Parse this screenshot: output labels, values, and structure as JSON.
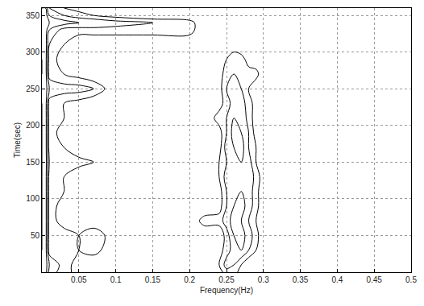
{
  "chart_data": {
    "type": "contour",
    "x_label": "Frequency(Hz)",
    "y_label": "Time(sec)",
    "xlim": [
      0,
      0.5
    ],
    "xticks": [
      0.05,
      0.1,
      0.15,
      0.2,
      0.25,
      0.3,
      0.35,
      0.4,
      0.45,
      0.5
    ],
    "ylim": [
      0,
      360
    ],
    "yticks": [
      50,
      100,
      150,
      200,
      250,
      300,
      350
    ],
    "grid": true,
    "color": "#000000",
    "contour_levels": {
      "start": 0.2,
      "end": 0.8,
      "size": 0.2
    },
    "x": [
      0,
      0.005,
      0.01,
      0.03,
      0.05,
      0.07,
      0.1,
      0.15,
      0.2,
      0.22,
      0.24,
      0.25,
      0.26,
      0.27,
      0.28,
      0.29,
      0.3,
      0.32,
      0.35,
      0.4,
      0.45,
      0.5
    ],
    "y": [
      0,
      10,
      30,
      50,
      70,
      90,
      110,
      130,
      150,
      170,
      190,
      210,
      230,
      250,
      270,
      290,
      310,
      330,
      340,
      350,
      360
    ],
    "cells": [
      [
        0.9,
        0.9,
        0.5,
        0.3,
        0.1,
        0,
        0,
        0,
        0,
        0,
        0.1,
        0.3,
        0.3,
        0.1,
        0,
        0,
        0,
        0,
        0,
        0,
        0,
        0
      ],
      [
        0.9,
        0.9,
        0.6,
        0.3,
        0.1,
        0,
        0,
        0,
        0,
        0,
        0.2,
        0.5,
        0.4,
        0.2,
        0,
        0,
        0,
        0,
        0,
        0,
        0,
        0
      ],
      [
        0.8,
        0.9,
        0.3,
        0.3,
        0.2,
        0.3,
        0,
        0,
        0,
        0,
        0.1,
        0.3,
        0.5,
        0.6,
        0.4,
        0.2,
        0,
        0,
        0,
        0,
        0,
        0
      ],
      [
        0.8,
        0.9,
        0.3,
        0.3,
        0.2,
        0.4,
        0,
        0,
        0,
        0,
        0,
        0.3,
        0.6,
        0.7,
        0.5,
        0.3,
        0,
        0,
        0,
        0,
        0,
        0
      ],
      [
        0.8,
        0.9,
        0.3,
        0.1,
        0,
        0,
        0,
        0,
        0,
        0.3,
        0.3,
        0.5,
        0.7,
        0.6,
        0.4,
        0.2,
        0,
        0,
        0,
        0,
        0,
        0
      ],
      [
        0.8,
        0.9,
        0.3,
        0.1,
        0,
        0,
        0,
        0,
        0,
        0,
        0.1,
        0.4,
        0.6,
        0.7,
        0.5,
        0.3,
        0,
        0,
        0,
        0,
        0,
        0
      ],
      [
        0.8,
        0.9,
        0.3,
        0.2,
        0,
        0,
        0,
        0,
        0,
        0,
        0.1,
        0.4,
        0.6,
        0.6,
        0.5,
        0.3,
        0,
        0,
        0,
        0,
        0,
        0
      ],
      [
        0.8,
        0.9,
        0.3,
        0.2,
        0,
        0,
        0,
        0,
        0,
        0,
        0.2,
        0.5,
        0.6,
        0.5,
        0.6,
        0.3,
        0.1,
        0,
        0,
        0,
        0,
        0
      ],
      [
        0.8,
        0.9,
        0.4,
        0.4,
        0.3,
        0.2,
        0,
        0,
        0,
        0,
        0.2,
        0.4,
        0.6,
        0.6,
        0.5,
        0.2,
        0,
        0,
        0,
        0,
        0,
        0
      ],
      [
        0.8,
        0.9,
        0.3,
        0.2,
        0,
        0.1,
        0,
        0,
        0,
        0,
        0.1,
        0.5,
        0.6,
        0.7,
        0.4,
        0.2,
        0,
        0,
        0,
        0,
        0,
        0
      ],
      [
        0.8,
        0.9,
        0.3,
        0.1,
        0,
        0,
        0,
        0,
        0,
        0,
        0.1,
        0.4,
        0.7,
        0.6,
        0.4,
        0.1,
        0,
        0,
        0,
        0,
        0,
        0
      ],
      [
        0.8,
        0.9,
        0.3,
        0.2,
        0,
        0,
        0,
        0,
        0,
        0,
        0.3,
        0.4,
        0.6,
        0.6,
        0.3,
        0.1,
        0,
        0,
        0,
        0,
        0,
        0
      ],
      [
        0.8,
        0.9,
        0.3,
        0.2,
        0.1,
        0,
        0,
        0,
        0,
        0,
        0.1,
        0.3,
        0.5,
        0.5,
        0.3,
        0.1,
        0,
        0,
        0,
        0,
        0,
        0
      ],
      [
        0.9,
        0.9,
        0.6,
        0.5,
        0.5,
        0.4,
        0,
        0,
        0,
        0,
        0.1,
        0.4,
        0.5,
        0.4,
        0.2,
        0,
        0,
        0,
        0,
        0,
        0,
        0
      ],
      [
        0.8,
        0.9,
        0.3,
        0.2,
        0.1,
        0,
        0,
        0,
        0,
        0,
        0.1,
        0.3,
        0.4,
        0.3,
        0.3,
        0.3,
        0,
        0,
        0,
        0,
        0,
        0
      ],
      [
        0.8,
        0.9,
        0.3,
        0.1,
        0,
        0,
        0,
        0,
        0,
        0,
        0,
        0.2,
        0.3,
        0.3,
        0.1,
        0,
        0,
        0,
        0,
        0,
        0,
        0
      ],
      [
        0.9,
        0.9,
        0.4,
        0.2,
        0,
        0,
        0,
        0,
        0,
        0,
        0,
        0,
        0.1,
        0,
        0,
        0,
        0,
        0,
        0,
        0,
        0,
        0
      ],
      [
        0.9,
        0.9,
        0.6,
        0.3,
        0.3,
        0.3,
        0.3,
        0.3,
        0.3,
        0,
        0,
        0,
        0,
        0,
        0,
        0,
        0,
        0,
        0,
        0,
        0,
        0
      ],
      [
        1,
        1,
        0.8,
        0.7,
        0.6,
        0.6,
        0.5,
        0.4,
        0.3,
        0,
        0,
        0,
        0,
        0,
        0,
        0,
        0,
        0,
        0,
        0,
        0,
        0
      ],
      [
        0.9,
        0.9,
        0.6,
        0.4,
        0.3,
        0.2,
        0.1,
        0,
        0,
        0,
        0,
        0,
        0,
        0,
        0,
        0,
        0,
        0,
        0,
        0,
        0,
        0
      ],
      [
        0.8,
        0.8,
        0.4,
        0.2,
        0.1,
        0,
        0,
        0,
        0,
        0,
        0,
        0,
        0,
        0,
        0,
        0,
        0,
        0,
        0,
        0,
        0,
        0
      ]
    ]
  }
}
